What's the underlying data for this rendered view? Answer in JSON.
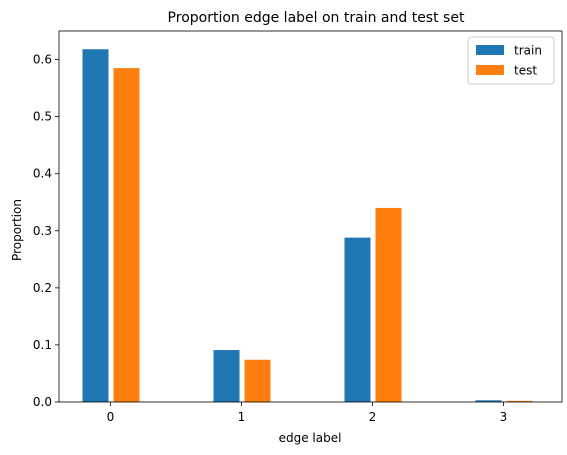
{
  "chart_data": {
    "type": "bar",
    "title": "Proportion edge label on train and test set",
    "xlabel": "edge label",
    "ylabel": "Proportion",
    "categories": [
      "0",
      "1",
      "2",
      "3"
    ],
    "series": [
      {
        "name": "train",
        "color": "#1f77b4",
        "values": [
          0.618,
          0.091,
          0.288,
          0.003
        ]
      },
      {
        "name": "test",
        "color": "#ff7f0e",
        "values": [
          0.585,
          0.074,
          0.34,
          0.002
        ]
      }
    ],
    "ylim": [
      0,
      0.65
    ],
    "yticks": [
      "0.0",
      "0.1",
      "0.2",
      "0.3",
      "0.4",
      "0.5",
      "0.6"
    ],
    "grid": false,
    "legend_position": "top-right"
  }
}
